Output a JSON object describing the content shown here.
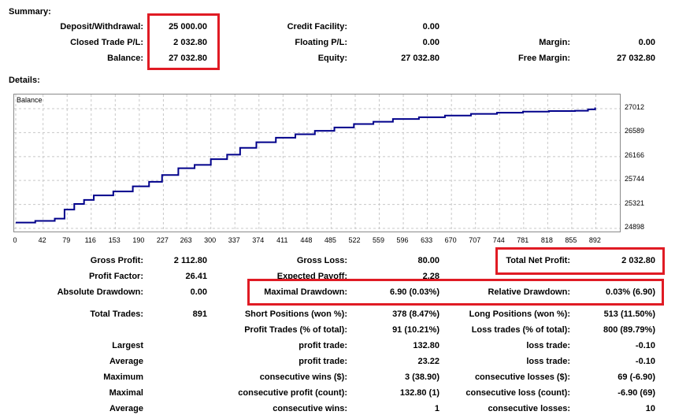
{
  "summary": {
    "heading": "Summary:",
    "deposit_label": "Deposit/Withdrawal:",
    "deposit_value": "25 000.00",
    "closed_pl_label": "Closed Trade P/L:",
    "closed_pl_value": "2 032.80",
    "balance_label": "Balance:",
    "balance_value": "27 032.80",
    "credit_label": "Credit Facility:",
    "credit_value": "0.00",
    "floating_label": "Floating P/L:",
    "floating_value": "0.00",
    "equity_label": "Equity:",
    "equity_value": "27 032.80",
    "margin_label": "Margin:",
    "margin_value": "0.00",
    "free_margin_label": "Free Margin:",
    "free_margin_value": "27 032.80"
  },
  "details": {
    "heading": "Details:"
  },
  "colors": {
    "line": "#00008b",
    "grid": "#c8c8c8",
    "highlight": "#e01b24"
  },
  "chart_data": {
    "type": "line",
    "title": "Balance",
    "ylim": [
      24898,
      27120
    ],
    "xlim": [
      0,
      929
    ],
    "yticks": [
      "27012",
      "26589",
      "26166",
      "25744",
      "25321",
      "24898"
    ],
    "xticks": [
      "0",
      "42",
      "79",
      "116",
      "153",
      "190",
      "227",
      "263",
      "300",
      "337",
      "374",
      "411",
      "448",
      "485",
      "522",
      "559",
      "596",
      "633",
      "670",
      "707",
      "744",
      "781",
      "818",
      "855",
      "892"
    ],
    "grid": true,
    "series": [
      {
        "x": [
          0,
          30,
          60,
          75,
          90,
          105,
          120,
          150,
          180,
          205,
          225,
          250,
          275,
          300,
          325,
          345,
          370,
          400,
          430,
          460,
          490,
          520,
          550,
          580,
          620,
          660,
          700,
          740,
          780,
          820,
          860,
          880,
          891
        ],
        "values": [
          25000,
          25030,
          25070,
          25230,
          25330,
          25400,
          25480,
          25550,
          25640,
          25720,
          25840,
          25960,
          26020,
          26120,
          26200,
          26320,
          26420,
          26500,
          26560,
          26620,
          26680,
          26740,
          26780,
          26830,
          26860,
          26890,
          26920,
          26940,
          26960,
          26970,
          26975,
          27000,
          27032.8
        ]
      }
    ]
  },
  "stats": {
    "gross_profit_label": "Gross Profit:",
    "gross_profit_value": "2 112.80",
    "gross_loss_label": "Gross Loss:",
    "gross_loss_value": "80.00",
    "net_profit_label": "Total Net Profit:",
    "net_profit_value": "2 032.80",
    "profit_factor_label": "Profit Factor:",
    "profit_factor_value": "26.41",
    "expected_payoff_label": "Expected Payoff:",
    "expected_payoff_value": "2.28",
    "abs_dd_label": "Absolute Drawdown:",
    "abs_dd_value": "0.00",
    "max_dd_label": "Maximal Drawdown:",
    "max_dd_value": "6.90 (0.03%)",
    "rel_dd_label": "Relative Drawdown:",
    "rel_dd_value": "0.03% (6.90)",
    "total_trades_label": "Total Trades:",
    "total_trades_value": "891",
    "short_label": "Short Positions (won %):",
    "short_value": "378 (8.47%)",
    "long_label": "Long Positions (won %):",
    "long_value": "513 (11.50%)",
    "profit_trades_label": "Profit Trades (% of total):",
    "profit_trades_value": "91 (10.21%)",
    "loss_trades_label": "Loss trades (% of total):",
    "loss_trades_value": "800 (89.79%)",
    "largest_label": "Largest",
    "largest_profit_label": "profit trade:",
    "largest_profit_value": "132.80",
    "largest_loss_label": "loss trade:",
    "largest_loss_value": "-0.10",
    "average_label": "Average",
    "avg_profit_label": "profit trade:",
    "avg_profit_value": "23.22",
    "avg_loss_label": "loss trade:",
    "avg_loss_value": "-0.10",
    "maximum_label": "Maximum",
    "max_cons_wins_label": "consecutive wins ($):",
    "max_cons_wins_value": "3 (38.90)",
    "max_cons_losses_label": "consecutive losses ($):",
    "max_cons_losses_value": "69 (-6.90)",
    "maximal_label": "Maximal",
    "max_cons_profit_label": "consecutive profit (count):",
    "max_cons_profit_value": "132.80 (1)",
    "max_cons_loss_label": "consecutive loss (count):",
    "max_cons_loss_value": "-6.90 (69)",
    "average2_label": "Average",
    "avg_cons_wins_label": "consecutive wins:",
    "avg_cons_wins_value": "1",
    "avg_cons_losses_label": "consecutive losses:",
    "avg_cons_losses_value": "10"
  }
}
